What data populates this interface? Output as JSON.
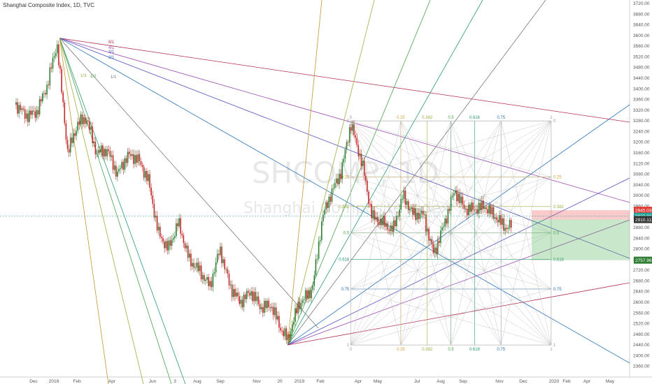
{
  "header": {
    "title": "Shanghai Composite Index, 1D, TVC"
  },
  "watermark": {
    "symbol": "SHCOMP, 1D",
    "name": "Shanghai Composite Index"
  },
  "colors": {
    "up": "#2e7d32",
    "down": "#c62828",
    "price_tag": "#333333",
    "stop_tag": "#e53935",
    "target_tag": "#2e7d32",
    "entry_tag": "#26a69a"
  },
  "chart_data": {
    "type": "candlestick",
    "ylim": [
      2320,
      3720
    ],
    "y_ticks": [
      3720,
      3680,
      3640,
      3600,
      3560,
      3520,
      3480,
      3440,
      3400,
      3360,
      3320,
      3280,
      3240,
      3200,
      3160,
      3120,
      3080,
      3040,
      3000,
      2960,
      2920,
      2880,
      2840,
      2800,
      2760,
      2720,
      2680,
      2640,
      2600,
      2560,
      2520,
      2480,
      2440,
      2400,
      2360
    ],
    "x_ticks": [
      "Dec",
      "2018",
      "Feb",
      "Apr",
      "Jun",
      "3",
      "Aug",
      "Sep",
      "Nov",
      "20",
      "2019",
      "Feb",
      "Apr",
      "May",
      "Jul",
      "Aug",
      "Sep",
      "Nov",
      "Dec",
      "2020",
      "Feb",
      "Apr",
      "May"
    ],
    "price_series": [
      [
        "2017-11-25",
        3340
      ],
      [
        "2017-12-10",
        3300
      ],
      [
        "2017-12-25",
        3310
      ],
      [
        "2018-01-10",
        3410
      ],
      [
        "2018-01-25",
        3570
      ],
      [
        "2018-02-10",
        3160
      ],
      [
        "2018-02-25",
        3270
      ],
      [
        "2018-03-10",
        3290
      ],
      [
        "2018-03-25",
        3160
      ],
      [
        "2018-04-10",
        3170
      ],
      [
        "2018-04-25",
        3080
      ],
      [
        "2018-05-10",
        3150
      ],
      [
        "2018-05-25",
        3140
      ],
      [
        "2018-06-10",
        3060
      ],
      [
        "2018-06-25",
        2860
      ],
      [
        "2018-07-10",
        2800
      ],
      [
        "2018-07-25",
        2900
      ],
      [
        "2018-08-10",
        2760
      ],
      [
        "2018-08-25",
        2720
      ],
      [
        "2018-09-10",
        2660
      ],
      [
        "2018-09-25",
        2800
      ],
      [
        "2018-10-10",
        2660
      ],
      [
        "2018-10-25",
        2600
      ],
      [
        "2018-11-10",
        2640
      ],
      [
        "2018-11-25",
        2580
      ],
      [
        "2018-12-10",
        2590
      ],
      [
        "2018-12-25",
        2500
      ],
      [
        "2019-01-04",
        2460
      ],
      [
        "2019-01-20",
        2590
      ],
      [
        "2019-02-10",
        2650
      ],
      [
        "2019-02-25",
        2920
      ],
      [
        "2019-03-10",
        3010
      ],
      [
        "2019-03-25",
        3090
      ],
      [
        "2019-04-08",
        3270
      ],
      [
        "2019-04-25",
        3120
      ],
      [
        "2019-05-10",
        2920
      ],
      [
        "2019-05-25",
        2900
      ],
      [
        "2019-06-10",
        2870
      ],
      [
        "2019-06-25",
        3000
      ],
      [
        "2019-07-10",
        2930
      ],
      [
        "2019-07-25",
        2930
      ],
      [
        "2019-08-10",
        2780
      ],
      [
        "2019-08-25",
        2890
      ],
      [
        "2019-09-10",
        3020
      ],
      [
        "2019-09-25",
        2950
      ],
      [
        "2019-10-10",
        2950
      ],
      [
        "2019-10-25",
        2960
      ],
      [
        "2019-11-10",
        2920
      ],
      [
        "2019-11-25",
        2880
      ],
      [
        "2019-12-05",
        2890
      ]
    ],
    "pitchfan_origin": [
      "2018-01-29",
      3590
    ],
    "pitchfan2_origin": [
      "2019-01-04",
      2440
    ],
    "fan_labels": [
      "1/1",
      "1/2",
      "1/3",
      "8/1",
      "4/1",
      "3/1",
      "2/1"
    ],
    "gann_box": {
      "start": "2019-04-08",
      "end": "2020-02-01",
      "high": 3280,
      "low": 2440,
      "levels": [
        "0",
        "0.25",
        "0.382",
        "0.5",
        "0.618",
        "0.75",
        "1"
      ]
    },
    "position": {
      "entry": 2910.112,
      "stop": 2945.03,
      "target": 2757.967,
      "current": 2922.814,
      "entry_label": "2910.112",
      "stop_label": "2945.030",
      "target_label": "2757.967",
      "current_label": "2922.814"
    }
  }
}
